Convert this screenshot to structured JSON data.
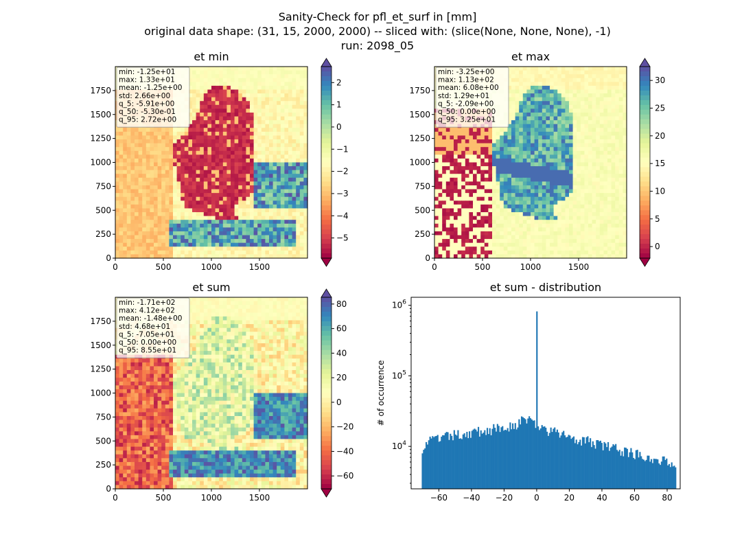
{
  "figure": {
    "title_lines": [
      "Sanity-Check for pfl_et_surf in [mm]",
      "original data shape: (31, 15, 2000, 2000) -- sliced with: (slice(None, None, None), -1)",
      "run: 2098_05"
    ]
  },
  "colors": {
    "cmap": [
      "#9e0142",
      "#d53e4f",
      "#f46d43",
      "#fdae61",
      "#fee08b",
      "#ffffbf",
      "#e6f598",
      "#abdda4",
      "#66c2a5",
      "#3288bd",
      "#5e4fa2"
    ],
    "histogram_bar": "#1f77b4",
    "germany_dark": "#a8163c",
    "stats_box_bg": "#ffffffcc"
  },
  "chart_data": [
    {
      "type": "heatmap",
      "title": "et min",
      "x_ticks": [
        0,
        500,
        1000,
        1500
      ],
      "y_ticks": [
        0,
        250,
        500,
        750,
        1000,
        1250,
        1500,
        1750
      ],
      "xlim": [
        0,
        2000
      ],
      "ylim": [
        0,
        2000
      ],
      "colorbar": {
        "vmin": -5.91,
        "vmax": 2.72,
        "ticks": [
          2,
          1,
          0,
          -1,
          -2,
          -3,
          -4,
          -5
        ],
        "labels": [
          "2",
          "1",
          "0",
          "−1",
          "−2",
          "−3",
          "−4",
          "−5"
        ],
        "extend": "both"
      },
      "stats": [
        "min: -1.25e+01",
        "max: 1.33e+01",
        "mean: -1.25e+00",
        "std: 2.66e+00",
        "q_5: -5.91e+00",
        "q_50: -5.30e-01",
        "q_95: 2.72e+00"
      ]
    },
    {
      "type": "heatmap",
      "title": "et max",
      "x_ticks": [
        0,
        500,
        1000,
        1500
      ],
      "y_ticks": [
        0,
        250,
        500,
        750,
        1000,
        1250,
        1500,
        1750
      ],
      "xlim": [
        0,
        2000
      ],
      "ylim": [
        0,
        2000
      ],
      "colorbar": {
        "vmin": -2.09,
        "vmax": 32.5,
        "ticks": [
          30,
          25,
          20,
          15,
          10,
          5,
          0
        ],
        "labels": [
          "30",
          "25",
          "20",
          "15",
          "10",
          "5",
          "0"
        ],
        "extend": "both"
      },
      "stats": [
        "min: -3.25e+00",
        "max: 1.13e+02",
        "mean: 6.08e+00",
        "std: 1.29e+01",
        "q_5: -2.09e+00",
        "q_50: 0.00e+00",
        "q_95: 3.25e+01"
      ]
    },
    {
      "type": "heatmap",
      "title": "et sum",
      "x_ticks": [
        0,
        500,
        1000,
        1500
      ],
      "y_ticks": [
        0,
        250,
        500,
        750,
        1000,
        1250,
        1500,
        1750
      ],
      "xlim": [
        0,
        2000
      ],
      "ylim": [
        0,
        2000
      ],
      "colorbar": {
        "vmin": -70.5,
        "vmax": 85.5,
        "ticks": [
          80,
          60,
          40,
          20,
          0,
          -20,
          -40,
          -60
        ],
        "labels": [
          "80",
          "60",
          "40",
          "20",
          "0",
          "−20",
          "−40",
          "−60"
        ],
        "extend": "both"
      },
      "stats": [
        "min: -1.71e+02",
        "max: 4.12e+02",
        "mean: -1.48e+00",
        "std: 4.68e+01",
        "q_5: -7.05e+01",
        "q_50: 0.00e+00",
        "q_95: 8.55e+01"
      ]
    },
    {
      "type": "bar",
      "title": "et sum - distribution",
      "ylabel": "# of occurrence",
      "yscale": "log",
      "xlim": [
        -77,
        88
      ],
      "ylim": [
        2500,
        1300000
      ],
      "x_ticks": [
        -60,
        -40,
        -20,
        0,
        20,
        40,
        60,
        80
      ],
      "x_tick_labels": [
        "−60",
        "−40",
        "−20",
        "0",
        "20",
        "40",
        "60",
        "80"
      ],
      "y_ticks": [
        10000,
        100000,
        1000000
      ],
      "y_tick_labels": [
        {
          "base": "10",
          "exp": "4"
        },
        {
          "base": "10",
          "exp": "5"
        },
        {
          "base": "10",
          "exp": "6"
        }
      ],
      "bin_range": [
        -70.5,
        85.5
      ],
      "anchors": [
        [
          -70.5,
          9500
        ],
        [
          -66,
          12000
        ],
        [
          -50,
          14500
        ],
        [
          -30,
          17000
        ],
        [
          -20,
          18500
        ],
        [
          -10,
          22000
        ],
        [
          -5,
          26000
        ],
        [
          -2,
          22000
        ],
        [
          2,
          18000
        ],
        [
          10,
          16000
        ],
        [
          20,
          14000
        ],
        [
          30,
          12000
        ],
        [
          40,
          10500
        ],
        [
          50,
          9000
        ],
        [
          60,
          8000
        ],
        [
          70,
          7000
        ],
        [
          80,
          6000
        ],
        [
          85.5,
          6000
        ]
      ],
      "spike": {
        "x": 0,
        "count": 820000
      }
    }
  ]
}
